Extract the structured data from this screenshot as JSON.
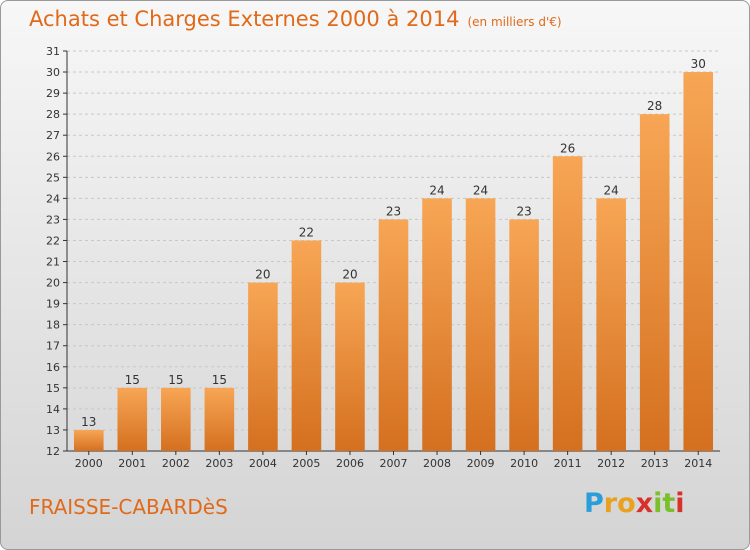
{
  "chart_data": {
    "type": "bar",
    "title": "Achats et Charges Externes 2000 à 2014",
    "subtitle": "(en milliers d'€)",
    "categories": [
      "2000",
      "2001",
      "2002",
      "2003",
      "2004",
      "2005",
      "2006",
      "2007",
      "2008",
      "2009",
      "2010",
      "2011",
      "2012",
      "2013",
      "2014"
    ],
    "values": [
      13,
      15,
      15,
      15,
      20,
      22,
      20,
      23,
      24,
      24,
      23,
      26,
      24,
      28,
      30
    ],
    "xlabel": "",
    "ylabel": "",
    "ylim": [
      12,
      31
    ],
    "yticks": [
      12,
      13,
      14,
      15,
      16,
      17,
      18,
      19,
      20,
      21,
      22,
      23,
      24,
      25,
      26,
      27,
      28,
      29,
      30,
      31
    ],
    "grid": true,
    "bar_color_top": "#f7a655",
    "bar_color_bottom": "#d4701f"
  },
  "footer": {
    "commune": "FRAISSE-CABARDèS",
    "logo_letters": [
      "P",
      "r",
      "o",
      "x",
      "i",
      "t",
      "i"
    ],
    "logo_colors": [
      "#2a9ed8",
      "#e9a21f",
      "#e9a21f",
      "#d8312a",
      "#7bbf2a",
      "#7bbf2a",
      "#d8312a"
    ]
  },
  "colors": {
    "title": "#e06a1a",
    "axis": "#333333",
    "grid": "#c8c8c8"
  }
}
